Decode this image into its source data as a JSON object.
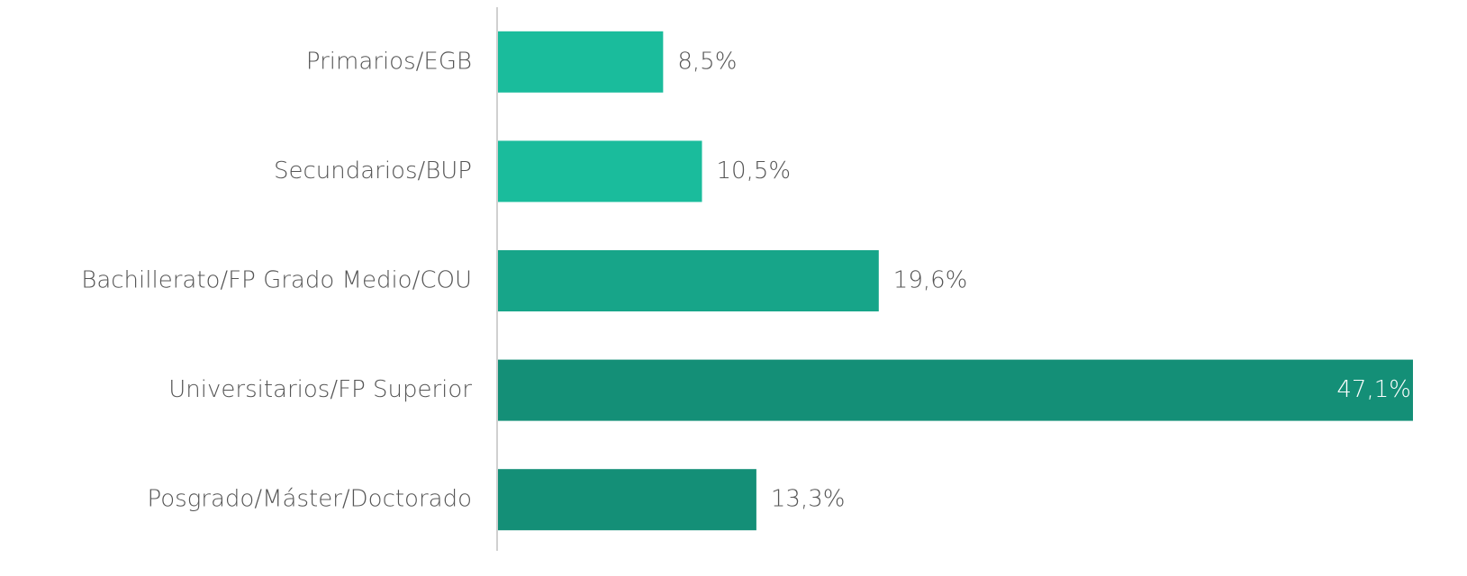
{
  "chart_data": {
    "type": "hbar",
    "categories": [
      "Primarios/EGB",
      "Secundarios/BUP",
      "Bachillerato/FP Grado Medio/COU",
      "Universitarios/FP Superior",
      "Posgrado/Máster/Doctorado"
    ],
    "values": [
      8.5,
      10.5,
      19.6,
      47.1,
      13.3
    ],
    "value_labels": [
      "8,5%",
      "10,5%",
      "19,6%",
      "47,1%",
      "13,3%"
    ],
    "colors": [
      "#1abc9c",
      "#1abc9c",
      "#17a589",
      "#148f77",
      "#148f77"
    ]
  }
}
